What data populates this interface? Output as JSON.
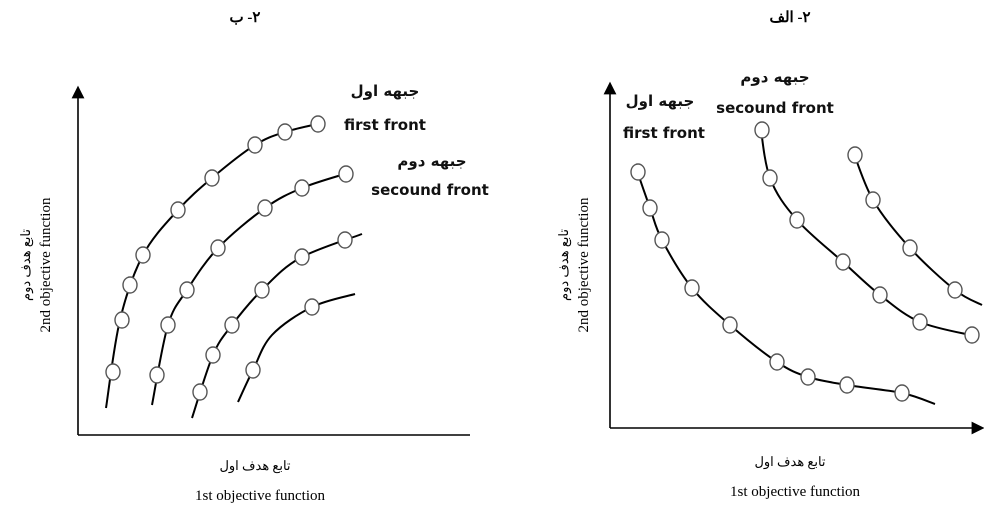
{
  "panels": [
    {
      "title": "۲- ب",
      "y_label_fa": "تابع هدف دوم",
      "y_label_en": "2nd objective function",
      "x_label_fa": "تابع هدف اول",
      "x_label_en": "1st objective function",
      "fronts": [
        {
          "label_fa": "جبهه اول",
          "label_en": "first front"
        },
        {
          "label_fa": "جبهه دوم",
          "label_en": "secound front"
        }
      ]
    },
    {
      "title": "۲- الف",
      "y_label_fa": "تابع هدف دوم",
      "y_label_en": "2nd objective function",
      "x_label_fa": "تابع هدف اول",
      "x_label_en": "1st objective function",
      "fronts": [
        {
          "label_fa": "جبهه اول",
          "label_en": "first front"
        },
        {
          "label_fa": "جبهه دوم",
          "label_en": "secound front"
        }
      ]
    }
  ]
}
